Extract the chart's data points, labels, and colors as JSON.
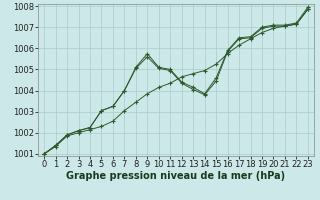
{
  "title": "Graphe pression niveau de la mer (hPa)",
  "bg_color": "#cce8e8",
  "grid_color": "#aacccc",
  "line_color": "#2d5a2d",
  "ylim": [
    1001,
    1008
  ],
  "xlim": [
    -0.5,
    23.5
  ],
  "yticks": [
    1001,
    1002,
    1003,
    1004,
    1005,
    1006,
    1007,
    1008
  ],
  "xticks": [
    0,
    1,
    2,
    3,
    4,
    5,
    6,
    7,
    8,
    9,
    10,
    11,
    12,
    13,
    14,
    15,
    16,
    17,
    18,
    19,
    20,
    21,
    22,
    23
  ],
  "s1": [
    1001.0,
    1001.4,
    1001.9,
    1002.1,
    1002.25,
    1003.05,
    1003.25,
    1004.0,
    1005.1,
    1005.75,
    1005.1,
    1005.0,
    1004.4,
    1004.15,
    1003.85,
    1004.6,
    1005.9,
    1006.5,
    1006.55,
    1007.0,
    1007.1,
    1007.1,
    1007.2,
    1007.95
  ],
  "s2": [
    1001.0,
    1001.4,
    1001.9,
    1002.1,
    1002.25,
    1003.05,
    1003.25,
    1004.0,
    1005.05,
    1005.6,
    1005.05,
    1004.95,
    1004.35,
    1004.05,
    1003.8,
    1004.45,
    1005.85,
    1006.45,
    1006.5,
    1006.95,
    1007.05,
    1007.05,
    1007.15,
    1007.85
  ],
  "s3": [
    1001.0,
    1001.35,
    1001.85,
    1002.0,
    1002.15,
    1002.3,
    1002.55,
    1003.05,
    1003.45,
    1003.85,
    1004.15,
    1004.35,
    1004.65,
    1004.8,
    1004.95,
    1005.25,
    1005.75,
    1006.15,
    1006.45,
    1006.75,
    1006.95,
    1007.05,
    1007.15,
    1007.85
  ],
  "tick_fontsize": 6,
  "title_fontsize": 7
}
